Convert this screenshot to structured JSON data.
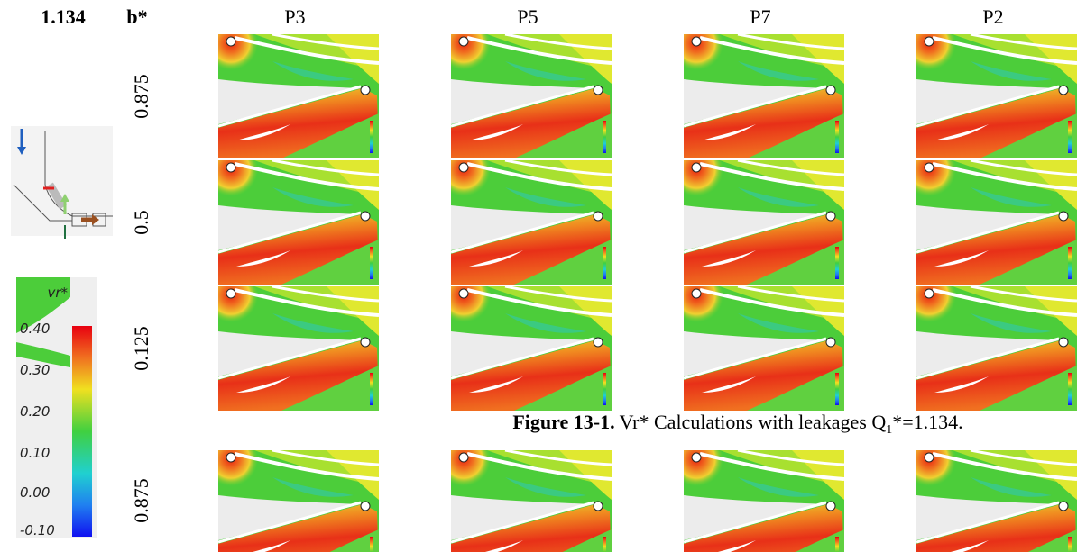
{
  "header": {
    "value": "1.134",
    "b_label": "b*"
  },
  "columns": [
    "P3",
    "P5",
    "P7",
    "P2"
  ],
  "rows": [
    "0.875",
    "0.5",
    "0.125",
    "0.875"
  ],
  "legend": {
    "title": "vr*",
    "ticks": [
      "0.40",
      "0.30",
      "0.20",
      "0.10",
      "0.00",
      "-0.10"
    ]
  },
  "caption": {
    "label": "Figure 13-1.",
    "text": "Vr* Calculations with leakages Q",
    "subscript": "1",
    "text_end": "*=1.134."
  }
}
